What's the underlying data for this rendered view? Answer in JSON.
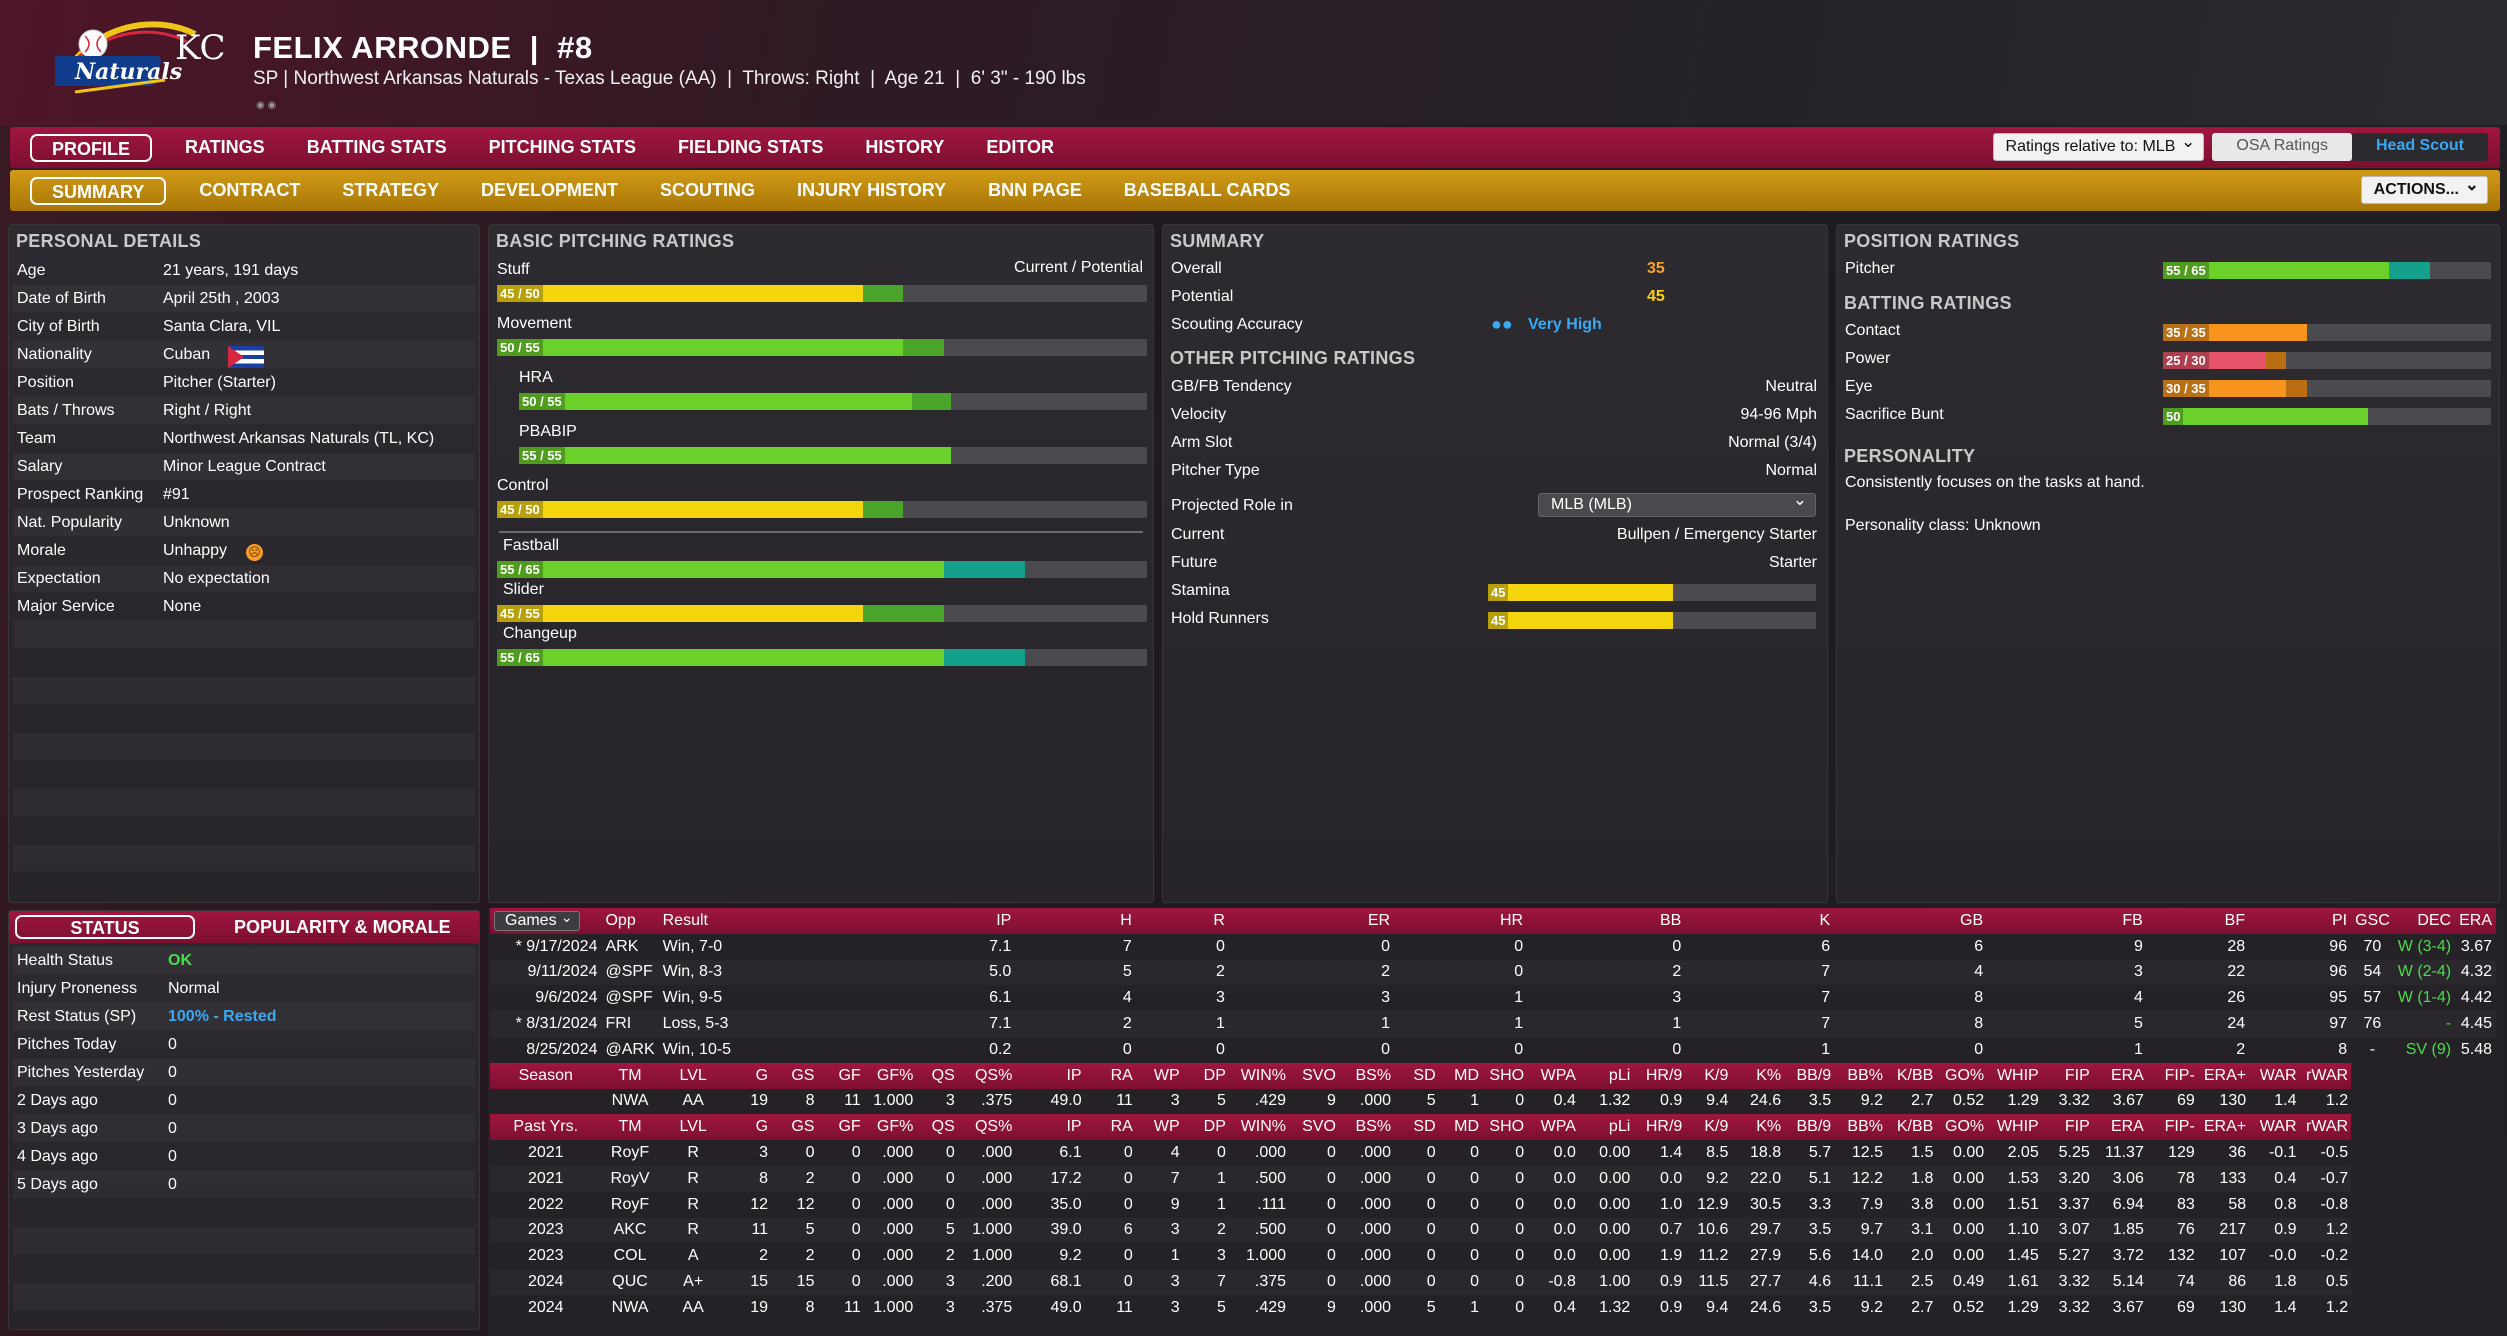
{
  "player": {
    "name_line": "FELIX ARRONDE  |  #8",
    "sub_line": "SP | Northwest Arkansas Naturals - Texas League (AA)  |  Throws: Right  |  Age 21  |  6' 3\" - 190 lbs",
    "logo_text": "Naturals",
    "logo_mlb": "KC"
  },
  "nav_main": [
    "PROFILE",
    "RATINGS",
    "BATTING STATS",
    "PITCHING STATS",
    "FIELDING STATS",
    "HISTORY",
    "EDITOR"
  ],
  "nav_sub": [
    "SUMMARY",
    "CONTRACT",
    "STRATEGY",
    "DEVELOPMENT",
    "SCOUTING",
    "INJURY HISTORY",
    "BNN PAGE",
    "BASEBALL CARDS"
  ],
  "ratings_relative": "Ratings relative to: MLB",
  "osa_label": "OSA Ratings",
  "scout_label": "Head Scout",
  "actions_label": "ACTIONS...",
  "personal": {
    "title": "PERSONAL DETAILS",
    "rows": [
      {
        "label": "Age",
        "value": "21 years, 191 days"
      },
      {
        "label": "Date of Birth",
        "value": "April 25th , 2003"
      },
      {
        "label": "City of Birth",
        "value": "Santa Clara, VIL"
      },
      {
        "label": "Nationality",
        "value": "Cuban"
      },
      {
        "label": "Position",
        "value": "Pitcher (Starter)"
      },
      {
        "label": "Bats / Throws",
        "value": "Right / Right"
      },
      {
        "label": "Team",
        "value": "Northwest Arkansas Naturals (TL, KC)"
      },
      {
        "label": "Salary",
        "value": "Minor League Contract"
      },
      {
        "label": "Prospect Ranking",
        "value": "#91"
      },
      {
        "label": "Nat. Popularity",
        "value": "Unknown"
      },
      {
        "label": "Morale",
        "value": "Unhappy"
      },
      {
        "label": "Expectation",
        "value": "No expectation"
      },
      {
        "label": "Major Service",
        "value": "None"
      }
    ]
  },
  "basic": {
    "title": "BASIC PITCHING RATINGS",
    "stuff_label": "Stuff",
    "cp_label": "Current / Potential",
    "bars": [
      {
        "label": "Stuff",
        "text": "45 / 50",
        "cur": 45,
        "pot": 50,
        "color": "#f5d60e"
      },
      {
        "label": "Movement",
        "text": "50 / 55",
        "cur": 50,
        "pot": 55,
        "color": "#6bd12a"
      },
      {
        "label": "HRA",
        "text": "50 / 55",
        "cur": 50,
        "pot": 55,
        "color": "#6bd12a"
      },
      {
        "label": "PBABIP",
        "text": "55 / 55",
        "cur": 55,
        "pot": 55,
        "color": "#6bd12a"
      },
      {
        "label": "Control",
        "text": "45 / 50",
        "cur": 45,
        "pot": 50,
        "color": "#f5d60e"
      }
    ],
    "pitches": [
      {
        "label": "Fastball",
        "text": "55 / 65",
        "cur": 55,
        "pot": 65,
        "color": "#6bd12a"
      },
      {
        "label": "Slider",
        "text": "45 / 55",
        "cur": 45,
        "pot": 55,
        "color": "#f5d60e"
      },
      {
        "label": "Changeup",
        "text": "55 / 65",
        "cur": 55,
        "pot": 65,
        "color": "#6bd12a"
      }
    ]
  },
  "summary": {
    "title": "SUMMARY",
    "overall_label": "Overall",
    "overall": "35",
    "potential_label": "Potential",
    "potential": "45",
    "accuracy_label": "Scouting Accuracy",
    "accuracy": "Very High",
    "other_title": "OTHER PITCHING RATINGS",
    "other": [
      {
        "label": "GB/FB Tendency",
        "value": "Neutral"
      },
      {
        "label": "Velocity",
        "value": "94-96 Mph"
      },
      {
        "label": "Arm Slot",
        "value": "Normal (3/4)"
      },
      {
        "label": "Pitcher Type",
        "value": "Normal"
      }
    ],
    "role_label": "Projected Role in",
    "role_select": "MLB (MLB)",
    "current_label": "Current",
    "current_value": "Bullpen / Emergency Starter",
    "future_label": "Future",
    "future_value": "Starter",
    "stamina_label": "Stamina",
    "stamina": 45,
    "hold_label": "Hold Runners",
    "hold": 45
  },
  "position": {
    "title": "POSITION RATINGS",
    "pitcher_label": "Pitcher",
    "pitcher_text": "55 / 65",
    "pitcher_cur": 55,
    "pitcher_pot": 65
  },
  "batting": {
    "title": "BATTING RATINGS",
    "rows": [
      {
        "label": "Contact",
        "text": "35 / 35",
        "cur": 35,
        "pot": 35,
        "color": "#f7941d"
      },
      {
        "label": "Power",
        "text": "25 / 30",
        "cur": 25,
        "pot": 30,
        "color": "#e8546a"
      },
      {
        "label": "Eye",
        "text": "30 / 35",
        "cur": 30,
        "pot": 35,
        "color": "#f7941d"
      },
      {
        "label": "Sacrifice Bunt",
        "text": "50",
        "cur": 50,
        "pot": 50,
        "color": "#6bd12a"
      }
    ]
  },
  "personality": {
    "title": "PERSONALITY",
    "text": "Consistently focuses on the tasks at hand.",
    "class_text": "Personality class: Unknown"
  },
  "status": {
    "tab1": "STATUS",
    "tab2": "POPULARITY & MORALE",
    "rows": [
      {
        "label": "Health Status",
        "value": "OK"
      },
      {
        "label": "Injury Proneness",
        "value": "Normal"
      },
      {
        "label": "Rest Status (SP)",
        "value": "100% - Rested"
      },
      {
        "label": "Pitches Today",
        "value": "0"
      },
      {
        "label": "Pitches Yesterday",
        "value": "0"
      },
      {
        "label": "2 Days ago",
        "value": "0"
      },
      {
        "label": "3 Days ago",
        "value": "0"
      },
      {
        "label": "4 Days ago",
        "value": "0"
      },
      {
        "label": "5 Days ago",
        "value": "0"
      }
    ]
  },
  "games": {
    "select": "Games",
    "headers": [
      "Opp",
      "Result",
      "IP",
      "H",
      "R",
      "ER",
      "HR",
      "BB",
      "K",
      "GB",
      "FB",
      "BF",
      "PI",
      "GSC",
      "DEC",
      "ERA"
    ],
    "rows": [
      [
        "* 9/17/2024",
        "ARK",
        "Win, 7-0",
        "7.1",
        "7",
        "0",
        "0",
        "0",
        "0",
        "6",
        "6",
        "9",
        "28",
        "96",
        "70",
        "W (3-4)",
        "3.67"
      ],
      [
        "9/11/2024",
        "@SPF",
        "Win, 8-3",
        "5.0",
        "5",
        "2",
        "2",
        "0",
        "2",
        "7",
        "4",
        "3",
        "22",
        "96",
        "54",
        "W (2-4)",
        "4.32"
      ],
      [
        "9/6/2024",
        "@SPF",
        "Win, 9-5",
        "6.1",
        "4",
        "3",
        "3",
        "1",
        "3",
        "7",
        "8",
        "4",
        "26",
        "95",
        "57",
        "W (1-4)",
        "4.42"
      ],
      [
        "* 8/31/2024",
        "FRI",
        "Loss, 5-3",
        "7.1",
        "2",
        "1",
        "1",
        "1",
        "1",
        "7",
        "8",
        "5",
        "24",
        "97",
        "76",
        "-",
        "4.45"
      ],
      [
        "8/25/2024",
        "@ARK",
        "Win, 10-5",
        "0.2",
        "0",
        "0",
        "0",
        "0",
        "0",
        "1",
        "0",
        "1",
        "2",
        "8",
        "-",
        "SV (9)",
        "5.48"
      ]
    ]
  },
  "season": {
    "headers": [
      "Season",
      "TM",
      "LVL",
      "G",
      "GS",
      "GF",
      "GF%",
      "QS",
      "QS%",
      "IP",
      "RA",
      "WP",
      "DP",
      "WIN%",
      "SVO",
      "BS%",
      "SD",
      "MD",
      "SHO",
      "WPA",
      "pLi",
      "HR/9",
      "K/9",
      "K%",
      "BB/9",
      "BB%",
      "K/BB",
      "GO%",
      "WHIP",
      "FIP",
      "ERA",
      "FIP-",
      "ERA+",
      "WAR",
      "rWAR"
    ],
    "row": [
      "",
      "NWA",
      "AA",
      "19",
      "8",
      "11",
      "1.000",
      "3",
      ".375",
      "49.0",
      "11",
      "3",
      "5",
      ".429",
      "9",
      ".000",
      "5",
      "1",
      "0",
      "0.4",
      "1.32",
      "0.9",
      "9.4",
      "24.6",
      "3.5",
      "9.2",
      "2.7",
      "0.52",
      "1.29",
      "3.32",
      "3.67",
      "69",
      "130",
      "1.4",
      "1.2"
    ]
  },
  "past": {
    "headers": [
      "Past Yrs.",
      "TM",
      "LVL",
      "G",
      "GS",
      "GF",
      "GF%",
      "QS",
      "QS%",
      "IP",
      "RA",
      "WP",
      "DP",
      "WIN%",
      "SVO",
      "BS%",
      "SD",
      "MD",
      "SHO",
      "WPA",
      "pLi",
      "HR/9",
      "K/9",
      "K%",
      "BB/9",
      "BB%",
      "K/BB",
      "GO%",
      "WHIP",
      "FIP",
      "ERA",
      "FIP-",
      "ERA+",
      "WAR",
      "rWAR"
    ],
    "rows": [
      [
        "2021",
        "RoyF",
        "R",
        "3",
        "0",
        "0",
        ".000",
        "0",
        ".000",
        "6.1",
        "0",
        "4",
        "0",
        ".000",
        "0",
        ".000",
        "0",
        "0",
        "0",
        "0.0",
        "0.00",
        "1.4",
        "8.5",
        "18.8",
        "5.7",
        "12.5",
        "1.5",
        "0.00",
        "2.05",
        "5.25",
        "11.37",
        "129",
        "36",
        "-0.1",
        "-0.5"
      ],
      [
        "2021",
        "RoyV",
        "R",
        "8",
        "2",
        "0",
        ".000",
        "0",
        ".000",
        "17.2",
        "0",
        "7",
        "1",
        ".500",
        "0",
        ".000",
        "0",
        "0",
        "0",
        "0.0",
        "0.00",
        "0.0",
        "9.2",
        "22.0",
        "5.1",
        "12.2",
        "1.8",
        "0.00",
        "1.53",
        "3.20",
        "3.06",
        "78",
        "133",
        "0.4",
        "-0.7"
      ],
      [
        "2022",
        "RoyF",
        "R",
        "12",
        "12",
        "0",
        ".000",
        "0",
        ".000",
        "35.0",
        "0",
        "9",
        "1",
        ".111",
        "0",
        ".000",
        "0",
        "0",
        "0",
        "0.0",
        "0.00",
        "1.0",
        "12.9",
        "30.5",
        "3.3",
        "7.9",
        "3.8",
        "0.00",
        "1.51",
        "3.37",
        "6.94",
        "83",
        "58",
        "0.8",
        "-0.8"
      ],
      [
        "2023",
        "AKC",
        "R",
        "11",
        "5",
        "0",
        ".000",
        "5",
        "1.000",
        "39.0",
        "6",
        "3",
        "2",
        ".500",
        "0",
        ".000",
        "0",
        "0",
        "0",
        "0.0",
        "0.00",
        "0.7",
        "10.6",
        "29.7",
        "3.5",
        "9.7",
        "3.1",
        "0.00",
        "1.10",
        "3.07",
        "1.85",
        "76",
        "217",
        "0.9",
        "1.2"
      ],
      [
        "2023",
        "COL",
        "A",
        "2",
        "2",
        "0",
        ".000",
        "2",
        "1.000",
        "9.2",
        "0",
        "1",
        "3",
        "1.000",
        "0",
        ".000",
        "0",
        "0",
        "0",
        "0.0",
        "0.00",
        "1.9",
        "11.2",
        "27.9",
        "5.6",
        "14.0",
        "2.0",
        "0.00",
        "1.45",
        "5.27",
        "3.72",
        "132",
        "107",
        "-0.0",
        "-0.2"
      ],
      [
        "2024",
        "QUC",
        "A+",
        "15",
        "15",
        "0",
        ".000",
        "3",
        ".200",
        "68.1",
        "0",
        "3",
        "7",
        ".375",
        "0",
        ".000",
        "0",
        "0",
        "0",
        "-0.8",
        "1.00",
        "0.9",
        "11.5",
        "27.7",
        "4.6",
        "11.1",
        "2.5",
        "0.49",
        "1.61",
        "3.32",
        "5.14",
        "74",
        "86",
        "1.8",
        "0.5"
      ],
      [
        "2024",
        "NWA",
        "AA",
        "19",
        "8",
        "11",
        "1.000",
        "3",
        ".375",
        "49.0",
        "11",
        "3",
        "5",
        ".429",
        "9",
        ".000",
        "5",
        "1",
        "0",
        "0.4",
        "1.32",
        "0.9",
        "9.4",
        "24.6",
        "3.5",
        "9.2",
        "2.7",
        "0.52",
        "1.29",
        "3.32",
        "3.67",
        "69",
        "130",
        "1.4",
        "1.2"
      ]
    ]
  },
  "colors": {
    "accent": "#a0163f",
    "gold": "#d19a16",
    "potential_green": "#4aa42a",
    "potential_teal": "#14a08a"
  }
}
